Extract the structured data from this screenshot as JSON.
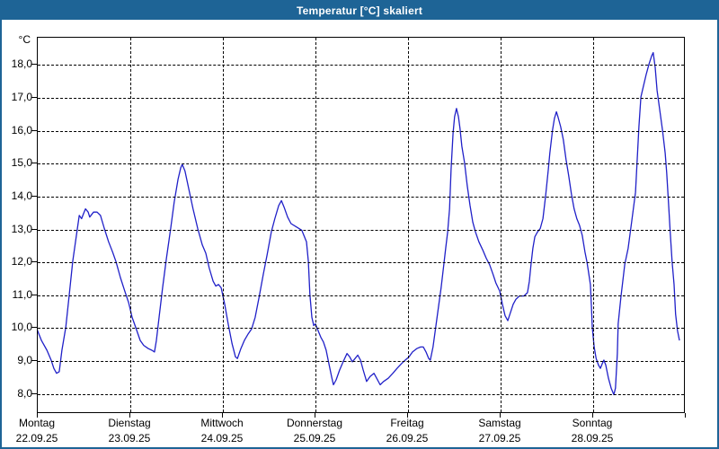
{
  "window": {
    "title": "Temperatur [°C] skaliert"
  },
  "colors": {
    "titlebar": "#1e6496",
    "window_border": "#1e6496",
    "series_line": "#2020c8",
    "grid": "#000000",
    "plot_background": "#ffffff",
    "text": "#000000"
  },
  "chart_data": {
    "type": "line",
    "title": "Temperatur [°C] skaliert",
    "y_unit_label": "°C",
    "ylabel": "Temperatur [°C]",
    "xlabel": "",
    "grid": "dashed",
    "legend": "none",
    "ylim": [
      7.39,
      18.83
    ],
    "y_ticks": [
      18,
      17,
      16,
      15,
      14,
      13,
      12,
      11,
      10,
      9,
      8
    ],
    "y_tick_labels": [
      "18,0",
      "17,0",
      "16,0",
      "15,0",
      "14,0",
      "13,0",
      "12,0",
      "11,0",
      "10,0",
      "9,0",
      "8,0"
    ],
    "x_range_hours": [
      0,
      168
    ],
    "x_days": [
      {
        "name": "Montag",
        "date": "22.09.25"
      },
      {
        "name": "Dienstag",
        "date": "23.09.25"
      },
      {
        "name": "Mittwoch",
        "date": "24.09.25"
      },
      {
        "name": "Donnerstag",
        "date": "25.09.25"
      },
      {
        "name": "Freitag",
        "date": "26.09.25"
      },
      {
        "name": "Samstag",
        "date": "27.09.25"
      },
      {
        "name": "Sonntag",
        "date": "28.09.25"
      }
    ],
    "series": [
      {
        "name": "Temperatur",
        "color": "#2020c8",
        "points_hour_temp": [
          [
            0,
            9.95
          ],
          [
            1.2,
            9.6
          ],
          [
            2.6,
            9.3
          ],
          [
            3.7,
            9.0
          ],
          [
            4.4,
            8.75
          ],
          [
            5.1,
            8.6
          ],
          [
            5.8,
            8.65
          ],
          [
            6.5,
            9.3
          ],
          [
            7.5,
            10.0
          ],
          [
            8.4,
            11.0
          ],
          [
            9.3,
            12.0
          ],
          [
            10.5,
            13.0
          ],
          [
            11,
            13.4
          ],
          [
            11.6,
            13.3
          ],
          [
            12.1,
            13.45
          ],
          [
            12.6,
            13.6
          ],
          [
            13.3,
            13.5
          ],
          [
            13.7,
            13.35
          ],
          [
            14.7,
            13.5
          ],
          [
            15.6,
            13.5
          ],
          [
            16.5,
            13.4
          ],
          [
            17.5,
            13.0
          ],
          [
            18.6,
            12.6
          ],
          [
            19.6,
            12.3
          ],
          [
            20.5,
            12.0
          ],
          [
            21.7,
            11.5
          ],
          [
            22.8,
            11.1
          ],
          [
            23.8,
            10.75
          ],
          [
            24.7,
            10.3
          ],
          [
            25.6,
            10.0
          ],
          [
            26.8,
            9.6
          ],
          [
            27.7,
            9.45
          ],
          [
            28.9,
            9.35
          ],
          [
            29.8,
            9.3
          ],
          [
            30.5,
            9.25
          ],
          [
            31,
            9.6
          ],
          [
            31.7,
            10.3
          ],
          [
            32.6,
            11.2
          ],
          [
            33.6,
            12.1
          ],
          [
            34.7,
            13.0
          ],
          [
            35.6,
            13.8
          ],
          [
            36.6,
            14.5
          ],
          [
            37.3,
            14.85
          ],
          [
            37.7,
            14.95
          ],
          [
            38.4,
            14.75
          ],
          [
            39.4,
            14.2
          ],
          [
            40.5,
            13.6
          ],
          [
            41.7,
            13.0
          ],
          [
            42.9,
            12.5
          ],
          [
            43.8,
            12.25
          ],
          [
            44.7,
            11.8
          ],
          [
            45.7,
            11.4
          ],
          [
            46.4,
            11.25
          ],
          [
            47.1,
            11.3
          ],
          [
            47.8,
            11.2
          ],
          [
            48.7,
            10.7
          ],
          [
            49.6,
            10.1
          ],
          [
            50.6,
            9.5
          ],
          [
            51.5,
            9.1
          ],
          [
            52,
            9.05
          ],
          [
            52.9,
            9.35
          ],
          [
            53.8,
            9.6
          ],
          [
            54.8,
            9.8
          ],
          [
            55.7,
            9.95
          ],
          [
            56.6,
            10.3
          ],
          [
            57.6,
            10.9
          ],
          [
            58.7,
            11.6
          ],
          [
            59.7,
            12.2
          ],
          [
            60.8,
            12.9
          ],
          [
            61.7,
            13.3
          ],
          [
            62.7,
            13.7
          ],
          [
            63.4,
            13.85
          ],
          [
            64.1,
            13.65
          ],
          [
            65,
            13.35
          ],
          [
            65.9,
            13.15
          ],
          [
            67.3,
            13.05
          ],
          [
            68.7,
            12.95
          ],
          [
            69.9,
            12.6
          ],
          [
            70.4,
            12.0
          ],
          [
            70.8,
            11.0
          ],
          [
            71.3,
            10.3
          ],
          [
            71.8,
            10.05
          ],
          [
            72.2,
            10.1
          ],
          [
            72.9,
            9.9
          ],
          [
            73.6,
            9.7
          ],
          [
            74.3,
            9.55
          ],
          [
            75,
            9.3
          ],
          [
            75.7,
            8.9
          ],
          [
            76.4,
            8.5
          ],
          [
            76.9,
            8.25
          ],
          [
            77.6,
            8.4
          ],
          [
            78.5,
            8.7
          ],
          [
            79.4,
            8.95
          ],
          [
            80.4,
            9.2
          ],
          [
            81.1,
            9.1
          ],
          [
            81.8,
            8.95
          ],
          [
            82.5,
            9.05
          ],
          [
            83.2,
            9.15
          ],
          [
            83.9,
            9.0
          ],
          [
            84.6,
            8.7
          ],
          [
            85.5,
            8.35
          ],
          [
            86.4,
            8.5
          ],
          [
            87.4,
            8.6
          ],
          [
            88.1,
            8.45
          ],
          [
            89,
            8.25
          ],
          [
            89.9,
            8.35
          ],
          [
            91.1,
            8.45
          ],
          [
            92.3,
            8.6
          ],
          [
            93.4,
            8.75
          ],
          [
            94.6,
            8.9
          ],
          [
            95.5,
            9.0
          ],
          [
            96.5,
            9.1
          ],
          [
            97.4,
            9.25
          ],
          [
            98.5,
            9.35
          ],
          [
            99.5,
            9.4
          ],
          [
            100.2,
            9.4
          ],
          [
            100.9,
            9.25
          ],
          [
            101.6,
            9.05
          ],
          [
            102,
            9.0
          ],
          [
            102.7,
            9.4
          ],
          [
            103.4,
            10.0
          ],
          [
            104.1,
            10.6
          ],
          [
            104.8,
            11.2
          ],
          [
            105.5,
            11.9
          ],
          [
            106,
            12.4
          ],
          [
            106.5,
            12.9
          ],
          [
            107,
            13.6
          ],
          [
            107.4,
            14.8
          ],
          [
            107.9,
            15.9
          ],
          [
            108.3,
            16.4
          ],
          [
            108.8,
            16.65
          ],
          [
            109.3,
            16.4
          ],
          [
            109.7,
            16.05
          ],
          [
            110.2,
            15.5
          ],
          [
            110.9,
            15.0
          ],
          [
            111.6,
            14.3
          ],
          [
            112.3,
            13.7
          ],
          [
            113,
            13.2
          ],
          [
            113.7,
            12.9
          ],
          [
            114.6,
            12.6
          ],
          [
            115.6,
            12.35
          ],
          [
            116.5,
            12.1
          ],
          [
            117.4,
            11.9
          ],
          [
            118.3,
            11.6
          ],
          [
            119,
            11.35
          ],
          [
            120,
            11.1
          ],
          [
            120.7,
            10.7
          ],
          [
            121.4,
            10.35
          ],
          [
            122.1,
            10.2
          ],
          [
            122.8,
            10.45
          ],
          [
            123.5,
            10.7
          ],
          [
            124.2,
            10.85
          ],
          [
            125.1,
            10.95
          ],
          [
            126.3,
            10.95
          ],
          [
            127.2,
            11.05
          ],
          [
            127.7,
            11.4
          ],
          [
            128.1,
            11.9
          ],
          [
            128.6,
            12.4
          ],
          [
            129.1,
            12.75
          ],
          [
            129.8,
            12.9
          ],
          [
            130.5,
            13.0
          ],
          [
            131.2,
            13.3
          ],
          [
            131.9,
            14.0
          ],
          [
            132.6,
            14.8
          ],
          [
            133,
            15.3
          ],
          [
            133.7,
            16.0
          ],
          [
            134.2,
            16.35
          ],
          [
            134.7,
            16.55
          ],
          [
            135.1,
            16.4
          ],
          [
            135.8,
            16.1
          ],
          [
            136.5,
            15.7
          ],
          [
            137.2,
            15.1
          ],
          [
            137.9,
            14.6
          ],
          [
            138.6,
            14.05
          ],
          [
            139.3,
            13.6
          ],
          [
            140,
            13.3
          ],
          [
            140.7,
            13.1
          ],
          [
            141.4,
            12.8
          ],
          [
            142.1,
            12.3
          ],
          [
            142.6,
            12.0
          ],
          [
            143,
            11.7
          ],
          [
            143.5,
            11.3
          ],
          [
            143.8,
            10.6
          ],
          [
            144,
            10.0
          ],
          [
            144.5,
            9.4
          ],
          [
            145,
            9.05
          ],
          [
            145.6,
            8.85
          ],
          [
            146.1,
            8.75
          ],
          [
            146.6,
            8.9
          ],
          [
            147,
            9.0
          ],
          [
            147.5,
            8.85
          ],
          [
            148.2,
            8.45
          ],
          [
            148.9,
            8.15
          ],
          [
            149.6,
            7.95
          ],
          [
            150,
            8.15
          ],
          [
            150.5,
            9.2
          ],
          [
            150.7,
            10.1
          ],
          [
            151.4,
            10.9
          ],
          [
            152.4,
            11.9
          ],
          [
            153.3,
            12.4
          ],
          [
            154.2,
            13.2
          ],
          [
            155.2,
            14.1
          ],
          [
            155.6,
            15.0
          ],
          [
            156.1,
            16.1
          ],
          [
            156.6,
            17.0
          ],
          [
            157,
            17.2
          ],
          [
            158,
            17.7
          ],
          [
            158.7,
            18.0
          ],
          [
            159.4,
            18.25
          ],
          [
            159.8,
            18.35
          ],
          [
            160.3,
            17.9
          ],
          [
            160.8,
            17.2
          ],
          [
            161.5,
            16.6
          ],
          [
            162.2,
            16.0
          ],
          [
            162.9,
            15.3
          ],
          [
            163.3,
            14.7
          ],
          [
            163.8,
            13.7
          ],
          [
            164.2,
            12.9
          ],
          [
            164.7,
            12.0
          ],
          [
            165.2,
            11.3
          ],
          [
            165.6,
            10.4
          ],
          [
            166.1,
            9.9
          ],
          [
            166.6,
            9.6
          ]
        ]
      }
    ]
  }
}
